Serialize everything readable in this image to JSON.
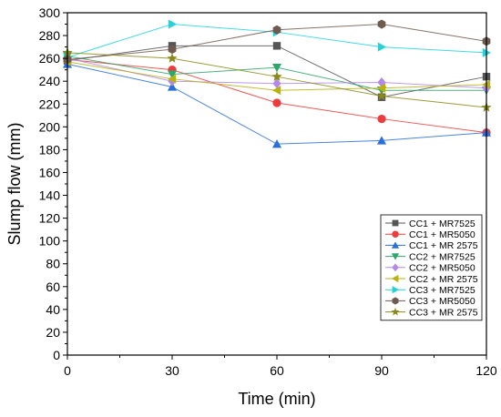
{
  "chart_data": {
    "type": "line",
    "xlabel": "Time (min)",
    "ylabel": "Slump flow (mm)",
    "x": [
      0,
      30,
      60,
      90,
      120
    ],
    "xticks": [
      0,
      30,
      60,
      90,
      120
    ],
    "xlim": [
      0,
      120
    ],
    "ylim": [
      0,
      300
    ],
    "yticks": [
      0,
      20,
      40,
      60,
      80,
      100,
      120,
      140,
      160,
      180,
      200,
      220,
      240,
      260,
      280,
      300
    ],
    "grid": false,
    "legend_position": "bottom-right",
    "series": [
      {
        "name": "CC1 + MR7525",
        "marker": "square",
        "color": "#555555",
        "values": [
          258,
          271,
          271,
          226,
          244
        ]
      },
      {
        "name": "CC1 + MR5050",
        "marker": "circle",
        "color": "#ee3b3b",
        "values": [
          259,
          250,
          221,
          207,
          195
        ]
      },
      {
        "name": "CC1 + MR 2575",
        "marker": "triangle-up",
        "color": "#2a6fdb",
        "values": [
          255,
          235,
          185,
          188,
          195
        ]
      },
      {
        "name": "CC2 + MR7525",
        "marker": "triangle-down",
        "color": "#2fa56b",
        "values": [
          262,
          246,
          252,
          232,
          232
        ]
      },
      {
        "name": "CC2 + MR5050",
        "marker": "diamond",
        "color": "#b28ae6",
        "values": [
          260,
          240,
          238,
          239,
          234
        ]
      },
      {
        "name": "CC2 + MR 2575",
        "marker": "triangle-left",
        "color": "#b9b20e",
        "values": [
          257,
          242,
          232,
          234,
          237
        ]
      },
      {
        "name": "CC3 + MR7525",
        "marker": "triangle-right",
        "color": "#22d3dc",
        "values": [
          261,
          290,
          283,
          270,
          265
        ]
      },
      {
        "name": "CC3 + MR5050",
        "marker": "hexagon",
        "color": "#6f5a50",
        "values": [
          259,
          268,
          285,
          290,
          275
        ]
      },
      {
        "name": "CC3 + MR 2575",
        "marker": "star",
        "color": "#8a8a1a",
        "values": [
          265,
          260,
          244,
          227,
          217
        ]
      }
    ]
  }
}
